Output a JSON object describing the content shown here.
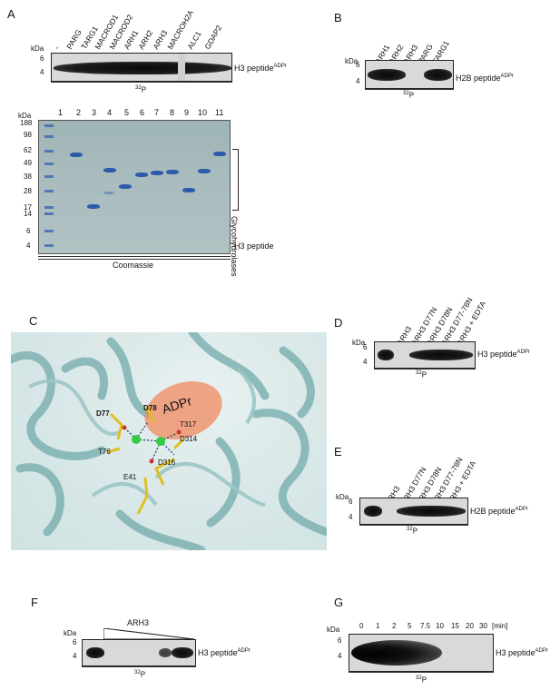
{
  "panels": {
    "A": "A",
    "B": "B",
    "C": "C",
    "D": "D",
    "E": "E",
    "F": "F",
    "G": "G"
  },
  "units": {
    "kda": "kDa",
    "p32": "³²P",
    "p32_base": "32",
    "p32_P": "P"
  },
  "panelA": {
    "lanes": [
      "-",
      "PARG",
      "TARG1",
      "MACROD1",
      "MACROD2",
      "ARH1",
      "ARH2",
      "ARH3",
      "MACROH2A",
      "ALC1",
      "GDAP2"
    ],
    "markers": [
      "6",
      "4"
    ],
    "label": "H3 peptide",
    "label_sup": "ADPr"
  },
  "gel": {
    "lane_numbers": [
      "1",
      "2",
      "3",
      "4",
      "5",
      "6",
      "7",
      "8",
      "9",
      "10",
      "11"
    ],
    "markers": [
      "188",
      "98",
      "62",
      "49",
      "38",
      "28",
      "17",
      "14",
      "6",
      "4"
    ],
    "glyco": "Glycohydrolases",
    "peptide": "H3 peptide",
    "stain": "Coomassie"
  },
  "panelB": {
    "lanes": [
      "-",
      "ARH1",
      "ARH2",
      "ARH3",
      "PARG",
      "TARG1"
    ],
    "markers": [
      "6",
      "4"
    ],
    "label": "H2B peptide",
    "label_sup": "ADPr"
  },
  "panelC": {
    "adpr": "ADPr",
    "residues": [
      "D77",
      "D78",
      "T317",
      "D314",
      "T76",
      "D316",
      "E41"
    ]
  },
  "panelD": {
    "lanes": [
      "-",
      "ARH3",
      "ARH3 D77N",
      "ARH3 D78N",
      "ARH3 D77-78N",
      "ARH3 + EDTA"
    ],
    "markers": [
      "6",
      "4"
    ],
    "label": "H3 peptide",
    "label_sup": "ADPr"
  },
  "panelE": {
    "lanes": [
      "-",
      "ARH3",
      "ARH3 D77N",
      "ARH3 D78N",
      "ARH3 D77-78N",
      "ARH3 + EDTA"
    ],
    "markers": [
      "6",
      "4"
    ],
    "label": "H2B peptide",
    "label_sup": "ADPr"
  },
  "panelF": {
    "enzyme": "ARH3",
    "markers": [
      "6",
      "4"
    ],
    "label": "H3 peptide",
    "label_sup": "ADPr"
  },
  "panelG": {
    "times": [
      "0",
      "1",
      "2",
      "5",
      "7.5",
      "10",
      "15",
      "20",
      "30"
    ],
    "unit": "[min]",
    "markers": [
      "6",
      "4"
    ],
    "label": "H3 peptide",
    "label_sup": "ADPr"
  }
}
